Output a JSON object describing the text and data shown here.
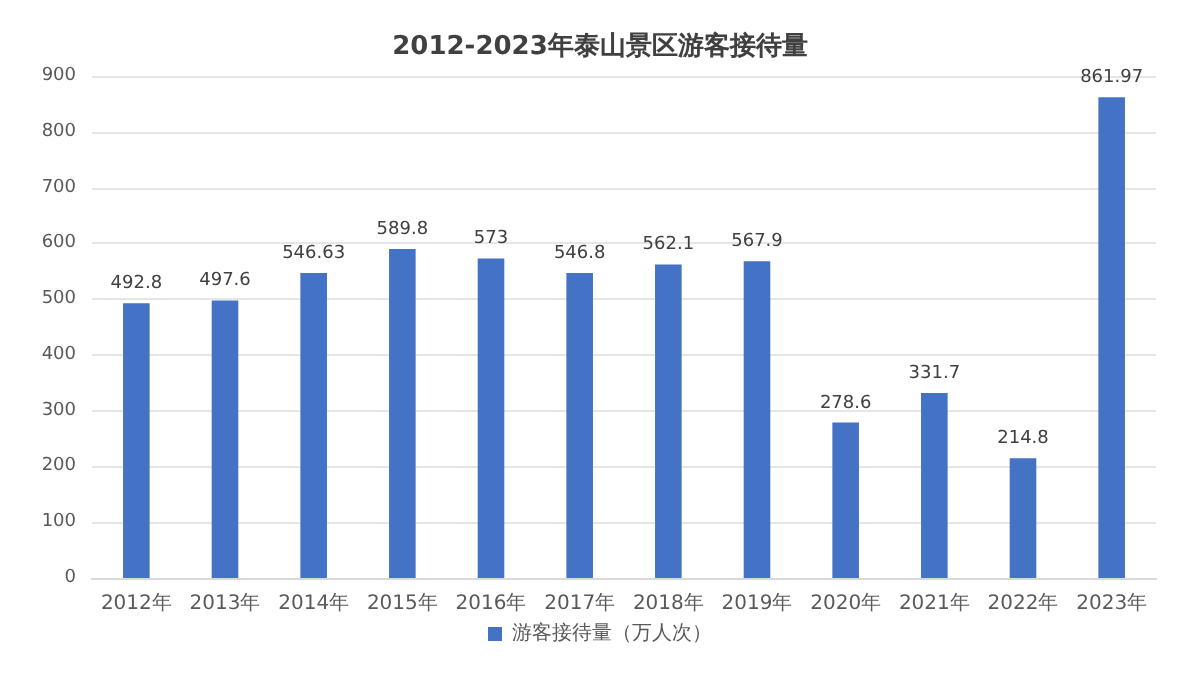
{
  "chart_data": {
    "type": "bar",
    "title": "2012-2023年泰山景区游客接待量",
    "categories": [
      "2012年",
      "2013年",
      "2014年",
      "2015年",
      "2016年",
      "2017年",
      "2018年",
      "2019年",
      "2020年",
      "2021年",
      "2022年",
      "2023年"
    ],
    "series": [
      {
        "name": "游客接待量（万人次）",
        "color": "#4472c4",
        "values": [
          492.8,
          497.6,
          546.63,
          589.8,
          573,
          546.8,
          562.1,
          567.9,
          278.6,
          331.7,
          214.8,
          861.97
        ]
      }
    ],
    "ylim": [
      0,
      900
    ],
    "yticks": [
      0,
      100,
      200,
      300,
      400,
      500,
      600,
      700,
      800,
      900
    ],
    "grid": "y",
    "legend": "bottom",
    "data_labels": true
  }
}
